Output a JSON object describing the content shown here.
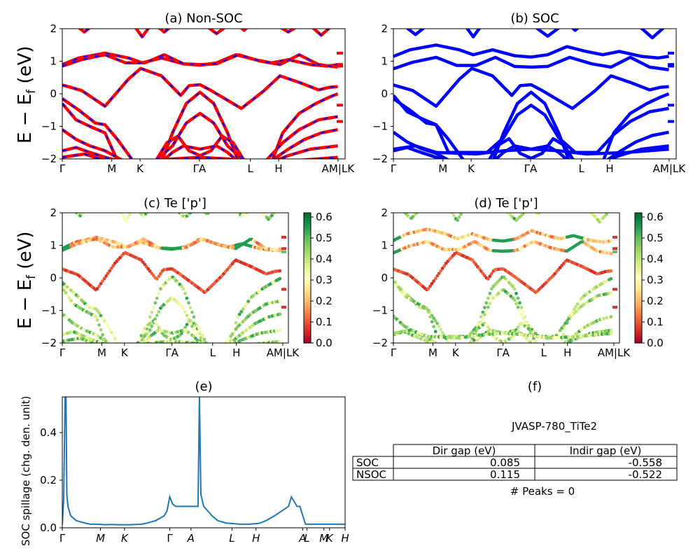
{
  "figure": {
    "ylabel_top": "E − E",
    "ylabel_sub": "f",
    "ylabel_unit": " (eV)"
  },
  "colors": {
    "nonsoc_red": "#ff0000",
    "nonsoc_blue": "#0000ff",
    "soc_blue": "#0000ff",
    "spillage_line": "#1f77b4",
    "colormap": [
      "#a50026",
      "#d73027",
      "#f46d43",
      "#fdae61",
      "#fee08b",
      "#ffffbf",
      "#d9ef8b",
      "#a6d96a",
      "#66bd63",
      "#1a9850",
      "#006837"
    ]
  },
  "chart_data": [
    {
      "id": "a",
      "type": "line",
      "title": "(a) Non-SOC",
      "ylim": [
        -2,
        2
      ],
      "yticks": [
        "2",
        "1",
        "0",
        "−1",
        "−2"
      ],
      "kpoint_labels": [
        "Γ",
        "M",
        "K",
        "Γ",
        "A",
        "L",
        "H",
        "A",
        "M",
        "L",
        "K"
      ],
      "kpoint_ticks": [
        "Γ",
        "M",
        "K",
        "ΓA",
        "L",
        "H",
        "AM|LK"
      ],
      "series": [
        {
          "values": [
            0.3,
            0.1,
            -0.25,
            -0.35,
            0.2,
            0.55,
            0.8,
            0.55,
            0.1,
            -0.3
          ]
        },
        {
          "values": [
            0.9,
            1.2,
            1.2,
            0.95,
            0.9,
            0.85,
            1.2,
            0.95,
            1.0,
            0.9
          ]
        }
      ]
    },
    {
      "id": "b",
      "type": "line",
      "title": "(b) SOC",
      "ylim": [
        -2,
        2
      ],
      "yticks": [
        "2",
        "1",
        "0",
        "−1",
        "−2"
      ],
      "kpoint_ticks": [
        "Γ",
        "M",
        "K",
        "ΓA",
        "L",
        "H",
        "AM|LK"
      ]
    },
    {
      "id": "c",
      "type": "scatter",
      "title": "(c)  Te ['p']",
      "ylim": [
        -2,
        2
      ],
      "yticks": [
        "2",
        "1",
        "0",
        "−1",
        "−2"
      ],
      "kpoint_ticks": [
        "Γ",
        "M",
        "K",
        "ΓA",
        "L",
        "H",
        "AM|LK"
      ],
      "colorbar_ticks": [
        "0.6",
        "0.5",
        "0.4",
        "0.3",
        "0.2",
        "0.1",
        "0.0"
      ],
      "colorbar_range": [
        0.0,
        0.62
      ]
    },
    {
      "id": "d",
      "type": "scatter",
      "title": "(d) Te ['p']",
      "ylim": [
        -2,
        2
      ],
      "yticks": [
        "2",
        "1",
        "0",
        "−1",
        "−2"
      ],
      "kpoint_ticks": [
        "Γ",
        "M",
        "K",
        "ΓA",
        "L",
        "H",
        "AM|LK"
      ],
      "colorbar_ticks": [
        "0.6",
        "0.5",
        "0.4",
        "0.3",
        "0.2",
        "0.1",
        "0.0"
      ],
      "colorbar_range": [
        0.0,
        0.62
      ]
    },
    {
      "id": "e",
      "type": "line",
      "title": "(e)",
      "ylabel": "SOC spillage (chg. den. unit)",
      "ylim": [
        0,
        0.55
      ],
      "yticks": [
        "0.4",
        "0.2",
        "0.0"
      ],
      "kpoint_ticks": [
        "Γ",
        "M",
        "K",
        "Γ",
        "A",
        "L",
        "H",
        "A",
        "L",
        "M",
        "K",
        "H"
      ],
      "x": [
        0,
        0.5,
        1,
        1.3,
        1.6,
        2,
        3,
        5,
        8,
        10,
        13,
        15,
        17,
        20,
        24,
        28,
        30,
        33,
        36,
        37,
        38,
        39,
        40,
        41,
        45,
        47,
        48,
        48.5,
        49,
        50,
        53,
        55,
        58,
        60,
        63,
        66,
        69,
        70,
        72,
        75,
        80,
        81,
        82,
        83,
        84,
        86,
        88,
        90,
        95,
        100
      ],
      "values": [
        0.015,
        0.12,
        0.55,
        0.55,
        0.14,
        0.09,
        0.05,
        0.03,
        0.02,
        0.015,
        0.015,
        0.013,
        0.014,
        0.013,
        0.013,
        0.015,
        0.02,
        0.03,
        0.05,
        0.07,
        0.13,
        0.1,
        0.09,
        0.09,
        0.09,
        0.09,
        0.09,
        0.55,
        0.14,
        0.09,
        0.05,
        0.03,
        0.02,
        0.018,
        0.015,
        0.015,
        0.018,
        0.02,
        0.03,
        0.05,
        0.09,
        0.13,
        0.11,
        0.09,
        0.09,
        0.015,
        0.015,
        0.015,
        0.015,
        0.015
      ]
    },
    {
      "id": "f",
      "type": "table",
      "title": "(f)",
      "material": "JVASP-780_TiTe2",
      "columns": [
        "Dir gap (eV)",
        "Indir gap (eV)"
      ],
      "rows": [
        {
          "label": "SOC",
          "values": [
            "0.085",
            "-0.558"
          ]
        },
        {
          "label": "NSOC",
          "values": [
            "0.115",
            "-0.522"
          ]
        }
      ],
      "peaks_note": "# Peaks = 0"
    }
  ]
}
